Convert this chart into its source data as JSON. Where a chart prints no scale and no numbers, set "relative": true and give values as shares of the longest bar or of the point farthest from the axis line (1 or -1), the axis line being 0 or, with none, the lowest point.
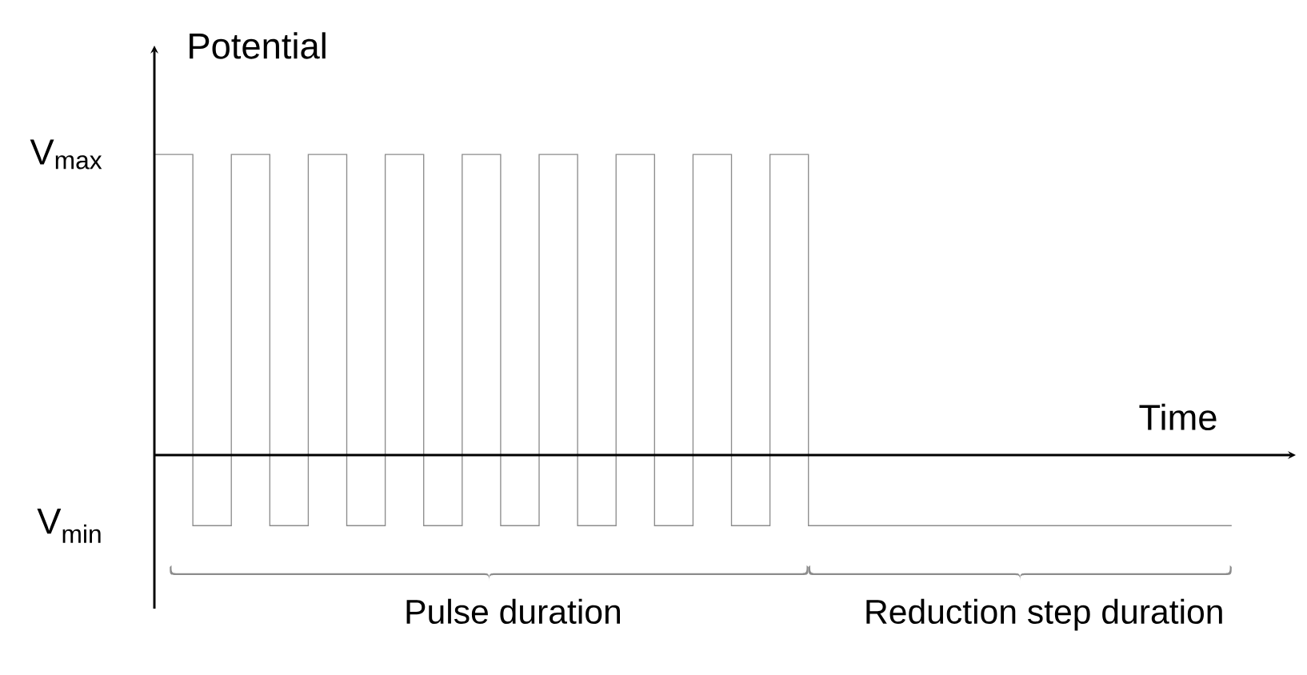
{
  "chart_data": {
    "type": "step",
    "relative": true,
    "xlabel": "Time",
    "ylabel": "Potential",
    "color": "#8c8c8c",
    "categories": [
      null,
      null,
      null,
      null,
      null,
      null,
      null,
      null,
      null,
      null,
      null,
      null,
      null,
      null,
      null,
      null,
      null,
      null,
      null,
      null,
      null,
      null,
      null,
      null,
      null,
      null,
      null,
      null,
      null
    ],
    "values": [
      1,
      -0.235,
      1,
      -0.235,
      1,
      -0.235,
      1,
      -0.235,
      1,
      -0.235,
      1,
      -0.235,
      1,
      -0.235,
      1,
      -0.235,
      1,
      -0.235,
      -0.235,
      -0.235,
      -0.235,
      -0.235,
      -0.235,
      -0.235,
      -0.235,
      -0.235,
      -0.235,
      -0.235,
      -0.235
    ],
    "annotations": [
      "V$_{max}$",
      "V$_{min}$",
      "Pulse duration",
      "Reduction step duration"
    ]
  }
}
